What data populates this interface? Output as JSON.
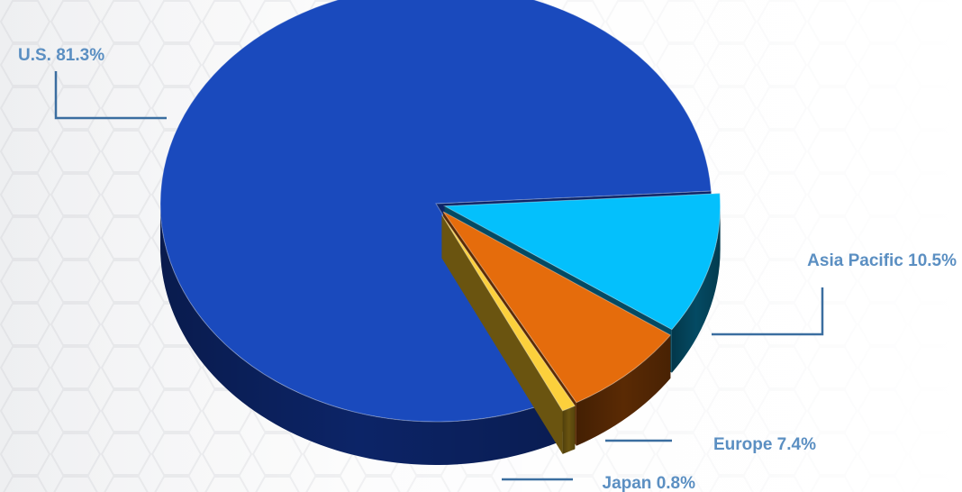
{
  "chart_data": {
    "type": "pie",
    "style": "3d-exploded",
    "legend": "none",
    "slices": [
      {
        "name": "U.S.",
        "value": 81.3,
        "label": "U.S. 81.3%",
        "color": "#1a4abd",
        "side_color": "#0c2467"
      },
      {
        "name": "Asia Pacific",
        "value": 10.5,
        "label": "Asia Pacific 10.5%",
        "color": "#04c0fc",
        "side_color": "#044a63"
      },
      {
        "name": "Europe",
        "value": 7.4,
        "label": "Europe 7.4%",
        "color": "#e56c0c",
        "side_color": "#5a2a04"
      },
      {
        "name": "Japan",
        "value": 0.8,
        "label": "Japan 0.8%",
        "color": "#fcd03c",
        "side_color": "#6a5410"
      }
    ],
    "label_color": "#5b8fc2",
    "leader_color": "#3b6ea0"
  }
}
